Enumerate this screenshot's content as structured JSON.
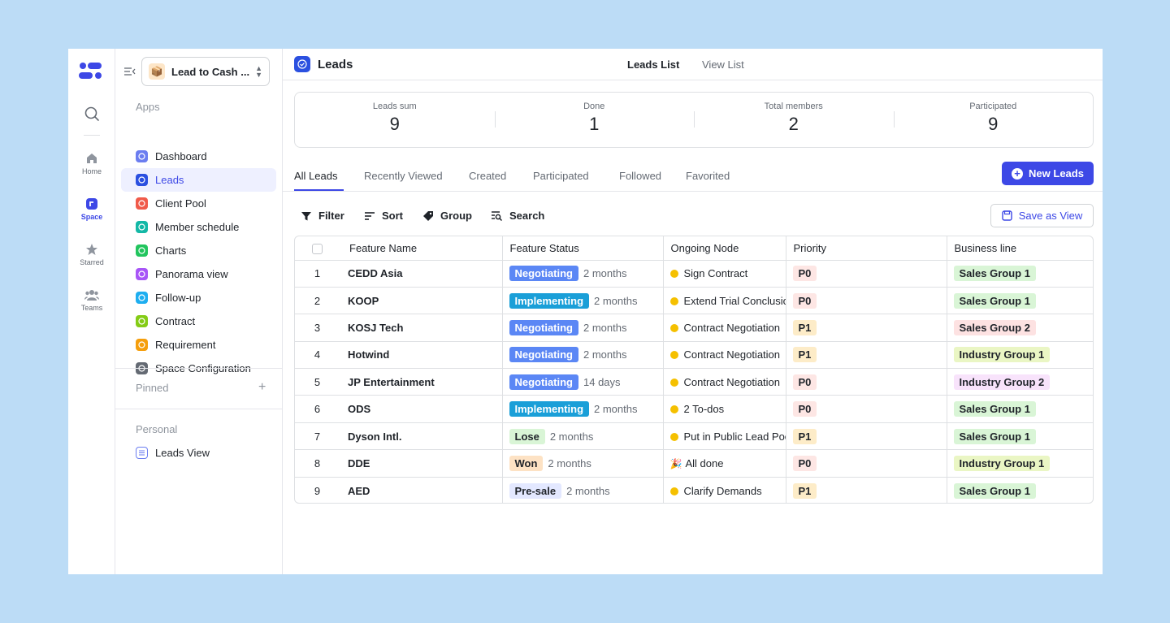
{
  "rail": {
    "items": [
      {
        "label": "Home"
      },
      {
        "label": "Space"
      },
      {
        "label": "Starred"
      },
      {
        "label": "Teams"
      }
    ]
  },
  "sidebar": {
    "space_name": "Lead to Cash ...",
    "apps_title": "Apps",
    "apps": [
      {
        "label": "Dashboard",
        "color": "#6b7df0"
      },
      {
        "label": "Leads",
        "color": "#2b50e0"
      },
      {
        "label": "Client Pool",
        "color": "#f05a4a"
      },
      {
        "label": "Member schedule",
        "color": "#14b8a6"
      },
      {
        "label": "Charts",
        "color": "#22c55e"
      },
      {
        "label": "Panorama view",
        "color": "#a855f7"
      },
      {
        "label": "Follow-up",
        "color": "#1eaef0"
      },
      {
        "label": "Contract",
        "color": "#84cc16"
      },
      {
        "label": "Requirement",
        "color": "#f59e0b"
      },
      {
        "label": "Space Configuration",
        "color": "#646a73"
      }
    ],
    "pinned_title": "Pinned",
    "personal_title": "Personal",
    "personal_items": [
      {
        "label": "Leads View"
      }
    ]
  },
  "header": {
    "title": "Leads",
    "view_tabs": [
      "Leads List",
      "View List"
    ]
  },
  "stats": [
    {
      "label": "Leads sum",
      "value": "9"
    },
    {
      "label": "Done",
      "value": "1"
    },
    {
      "label": "Total members",
      "value": "2"
    },
    {
      "label": "Participated",
      "value": "9"
    }
  ],
  "tabs": [
    "All Leads",
    "Recently Viewed",
    "Created",
    "Participated",
    "Followed",
    "Favorited"
  ],
  "new_button": "New Leads",
  "toolbar": {
    "filter": "Filter",
    "sort": "Sort",
    "group": "Group",
    "search": "Search",
    "save_view": "Save as View"
  },
  "table": {
    "columns": [
      "Feature Name",
      "Feature Status",
      "Ongoing Node",
      "Priority",
      "Business line"
    ],
    "rows": [
      {
        "num": "1",
        "name": "CEDD Asia",
        "status": "Negotiating",
        "status_type": "negotiating",
        "duration": "2 months",
        "node": "Sign Contract",
        "node_icon": "dot",
        "priority": "P0",
        "business": "Sales Group 1",
        "biz_type": "green"
      },
      {
        "num": "2",
        "name": "KOOP",
        "status": "Implementing",
        "status_type": "implementing",
        "duration": "2 months",
        "node": "Extend Trial Conclusion",
        "node_icon": "dot",
        "priority": "P0",
        "business": "Sales Group 1",
        "biz_type": "green"
      },
      {
        "num": "3",
        "name": "KOSJ Tech",
        "status": "Negotiating",
        "status_type": "negotiating",
        "duration": "2 months",
        "node": "Contract Negotiation",
        "node_icon": "dot",
        "priority": "P1",
        "business": "Sales Group 2",
        "biz_type": "red"
      },
      {
        "num": "4",
        "name": "Hotwind",
        "status": "Negotiating",
        "status_type": "negotiating",
        "duration": "2 months",
        "node": "Contract Negotiation",
        "node_icon": "dot",
        "priority": "P1",
        "business": "Industry Group 1",
        "biz_type": "lime"
      },
      {
        "num": "5",
        "name": "JP Entertainment",
        "status": "Negotiating",
        "status_type": "negotiating",
        "duration": "14 days",
        "node": "Contract Negotiation",
        "node_icon": "dot",
        "priority": "P0",
        "business": "Industry Group 2",
        "biz_type": "purple"
      },
      {
        "num": "6",
        "name": "ODS",
        "status": "Implementing",
        "status_type": "implementing",
        "duration": "2 months",
        "node": "2 To-dos",
        "node_icon": "dot",
        "priority": "P0",
        "business": "Sales Group 1",
        "biz_type": "green"
      },
      {
        "num": "7",
        "name": "Dyson Intl.",
        "status": "Lose",
        "status_type": "lose",
        "duration": "2 months",
        "node": "Put in Public Lead Pool",
        "node_icon": "dot",
        "priority": "P1",
        "business": "Sales Group 1",
        "biz_type": "green"
      },
      {
        "num": "8",
        "name": "DDE",
        "status": "Won",
        "status_type": "won",
        "duration": "2 months",
        "node": "All done",
        "node_icon": "party",
        "priority": "P0",
        "business": "Industry Group 1",
        "biz_type": "lime"
      },
      {
        "num": "9",
        "name": "AED",
        "status": "Pre-sale",
        "status_type": "presale",
        "duration": "2 months",
        "node": "Clarify Demands",
        "node_icon": "dot",
        "priority": "P1",
        "business": "Sales Group 1",
        "biz_type": "green"
      }
    ]
  },
  "colors": {
    "accent": "#3d48e6",
    "negotiating": "#5b87f5",
    "implementing": "#1a9fd8",
    "lose_bg": "#d9f5d6",
    "won_bg": "#fde2c4",
    "presale_bg": "#e3e8ff",
    "green_tag": "#d9f5d6",
    "red_tag": "#fde2e2",
    "lime_tag": "#eaf6c4",
    "purple_tag": "#f8e3fb"
  }
}
